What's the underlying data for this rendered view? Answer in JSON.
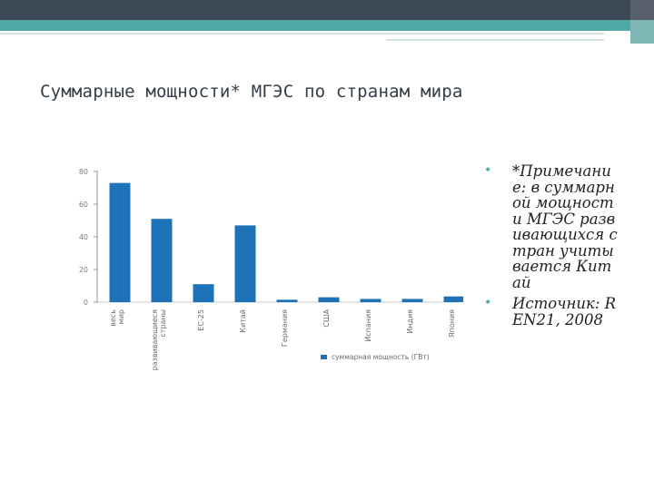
{
  "slide": {
    "title": "Суммарные мощности* МГЭС по странам мира",
    "notes": [
      "*Примечание: в суммарной мощности МГЭС развивающихся стран учитывается Китай",
      "Источник: REN21, 2008"
    ],
    "bullet_glyph": "•"
  },
  "colors": {
    "bar": "#1e73b8",
    "accent": "#4fa9a5",
    "header": "#3d4857"
  },
  "chart_data": {
    "type": "bar",
    "categories": [
      "весь мир",
      "развивающиеся страны",
      "ЕС-25",
      "Китай",
      "Германия",
      "США",
      "Испания",
      "Индия",
      "Япония"
    ],
    "series": [
      {
        "name": "суммарная мощность (ГВт)",
        "values": [
          73,
          51,
          11,
          47,
          1.5,
          3,
          2,
          2,
          3.5
        ]
      }
    ],
    "ylim": [
      0,
      80
    ],
    "yticks": [
      0,
      20,
      40,
      60,
      80
    ],
    "ytick_labels": [
      "0",
      "20",
      "40",
      "60",
      "80"
    ],
    "legend_position": "bottom",
    "grid": false
  }
}
